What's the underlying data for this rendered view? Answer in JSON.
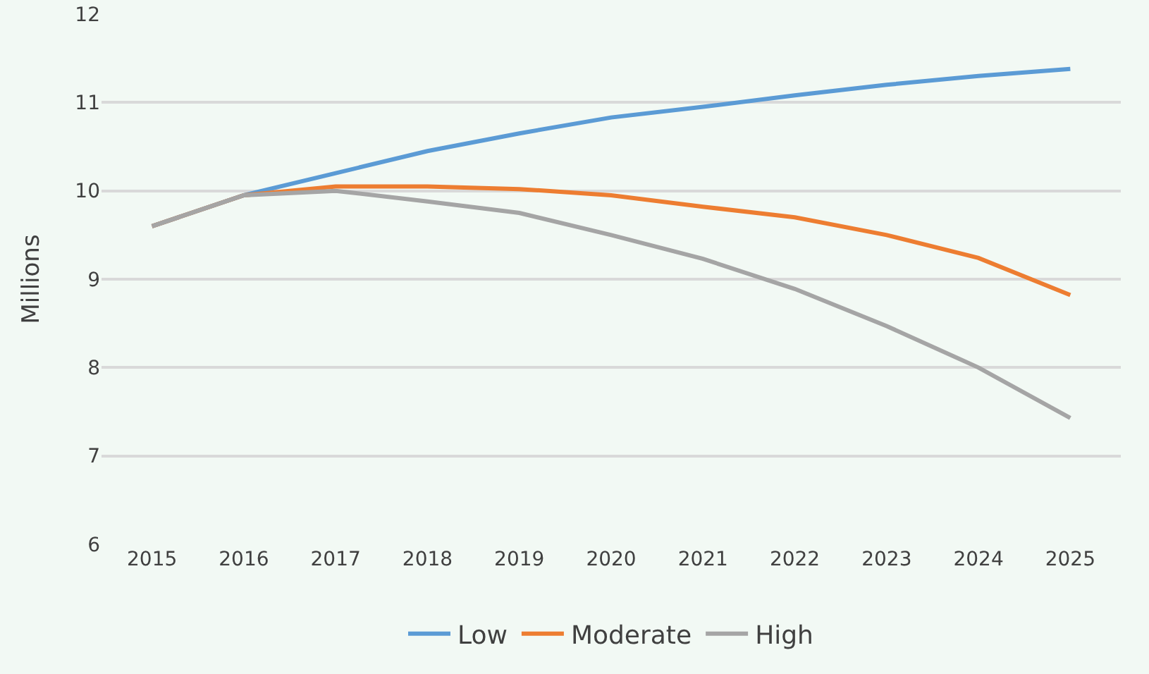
{
  "chart_data": {
    "type": "line",
    "ylabel": "Millions",
    "categories": [
      "2015",
      "2016",
      "2017",
      "2018",
      "2019",
      "2020",
      "2021",
      "2022",
      "2023",
      "2024",
      "2025"
    ],
    "series": [
      {
        "name": "Low",
        "color": "#5b9bd5",
        "values": [
          9.6,
          9.95,
          10.2,
          10.45,
          10.65,
          10.83,
          10.95,
          11.08,
          11.2,
          11.3,
          11.38
        ]
      },
      {
        "name": "Moderate",
        "color": "#ed7d31",
        "values": [
          9.6,
          9.95,
          10.05,
          10.05,
          10.02,
          9.95,
          9.82,
          9.7,
          9.5,
          9.24,
          8.82
        ]
      },
      {
        "name": "High",
        "color": "#a5a5a5",
        "values": [
          9.6,
          9.95,
          10.0,
          9.88,
          9.75,
          9.5,
          9.23,
          8.89,
          8.47,
          8.0,
          7.43
        ]
      }
    ],
    "ylim": [
      6,
      12
    ],
    "yticks": [
      6,
      7,
      8,
      9,
      10,
      11,
      12
    ],
    "grid": "y",
    "legend": "bottom",
    "marker": "none",
    "line_style": "solid"
  }
}
